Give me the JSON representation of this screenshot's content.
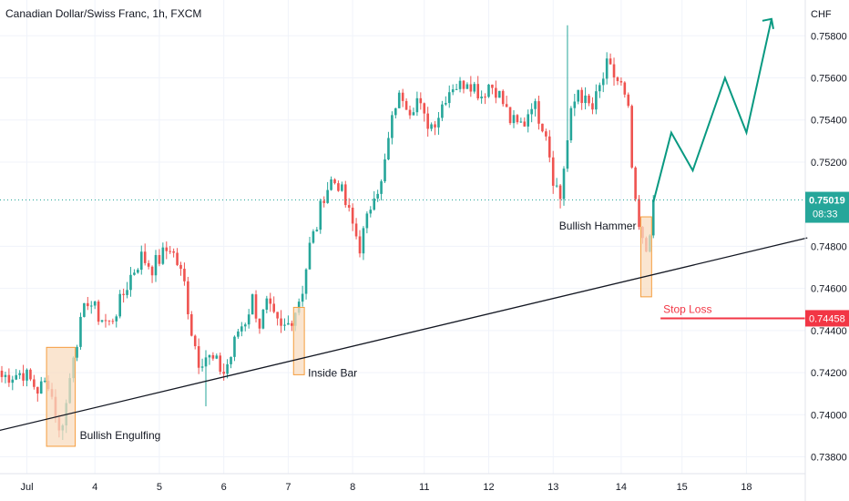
{
  "header": {
    "title": "Canadian Dollar/Swiss Franc, 1h, FXCM"
  },
  "colors": {
    "up": "#26a69a",
    "down": "#ef5350",
    "grid": "#f0f3fa",
    "trendline": "#131722",
    "projection": "#089981",
    "stop": "#f23645",
    "pattern_fill": "#f8dcc0",
    "pattern_stroke": "#f59d3d",
    "text": "#131722",
    "axis_text": "#131722"
  },
  "chart_data": {
    "type": "candlestick",
    "symbol": "Canadian Dollar/Swiss Franc",
    "timeframe": "1h",
    "source": "FXCM",
    "currency": "CHF",
    "x_axis_labels": [
      "Jul",
      "4",
      "5",
      "6",
      "7",
      "8",
      "11",
      "12",
      "13",
      "14",
      "15",
      "18"
    ],
    "y_axis": {
      "ticks": [
        "0.73800",
        "0.74000",
        "0.74200",
        "0.74400",
        "0.74600",
        "0.74800",
        "0.75200",
        "0.75400",
        "0.75600",
        "0.75800"
      ],
      "range": [
        0.7372,
        0.7597
      ]
    },
    "price_path": [
      [
        0,
        0.7418
      ],
      [
        6,
        0.742
      ],
      [
        10,
        0.7412
      ],
      [
        13,
        0.7416
      ],
      [
        15,
        0.7401
      ],
      [
        16,
        0.7391
      ],
      [
        18,
        0.7405
      ],
      [
        20,
        0.743
      ],
      [
        24,
        0.7455
      ],
      [
        27,
        0.7447
      ],
      [
        30,
        0.7443
      ],
      [
        33,
        0.7453
      ],
      [
        36,
        0.7466
      ],
      [
        39,
        0.7475
      ],
      [
        42,
        0.747
      ],
      [
        45,
        0.7476
      ],
      [
        47,
        0.748
      ],
      [
        49,
        0.7472
      ],
      [
        51,
        0.7462
      ],
      [
        53,
        0.744
      ],
      [
        55,
        0.7426
      ],
      [
        57,
        0.7428
      ],
      [
        60,
        0.7424
      ],
      [
        62,
        0.742
      ],
      [
        64,
        0.7428
      ],
      [
        66,
        0.744
      ],
      [
        68,
        0.7445
      ],
      [
        70,
        0.7455
      ],
      [
        72,
        0.7443
      ],
      [
        74,
        0.7452
      ],
      [
        76,
        0.7445
      ],
      [
        78,
        0.744
      ],
      [
        80,
        0.7443
      ],
      [
        82,
        0.745
      ],
      [
        84,
        0.746
      ],
      [
        86,
        0.748
      ],
      [
        88,
        0.749
      ],
      [
        90,
        0.7505
      ],
      [
        92,
        0.7511
      ],
      [
        94,
        0.751
      ],
      [
        96,
        0.75
      ],
      [
        98,
        0.749
      ],
      [
        100,
        0.748
      ],
      [
        102,
        0.7492
      ],
      [
        104,
        0.7507
      ],
      [
        106,
        0.7509
      ],
      [
        108,
        0.753
      ],
      [
        110,
        0.7548
      ],
      [
        112,
        0.7552
      ],
      [
        114,
        0.7546
      ],
      [
        116,
        0.755
      ],
      [
        118,
        0.754
      ],
      [
        120,
        0.7538
      ],
      [
        122,
        0.7543
      ],
      [
        124,
        0.7552
      ],
      [
        126,
        0.7557
      ],
      [
        128,
        0.7556
      ],
      [
        130,
        0.756
      ],
      [
        132,
        0.7556
      ],
      [
        134,
        0.7552
      ],
      [
        136,
        0.7557
      ],
      [
        138,
        0.7555
      ],
      [
        140,
        0.7548
      ],
      [
        142,
        0.754
      ],
      [
        144,
        0.7537
      ],
      [
        146,
        0.7539
      ],
      [
        148,
        0.7549
      ],
      [
        150,
        0.7542
      ],
      [
        152,
        0.7535
      ],
      [
        154,
        0.7513
      ],
      [
        156,
        0.7503
      ],
      [
        157,
        0.7518
      ],
      [
        159,
        0.7542
      ],
      [
        161,
        0.7555
      ],
      [
        163,
        0.7548
      ],
      [
        165,
        0.7545
      ],
      [
        167,
        0.7555
      ],
      [
        169,
        0.7565
      ],
      [
        171,
        0.7561
      ],
      [
        173,
        0.7556
      ],
      [
        175,
        0.7543
      ],
      [
        176,
        0.7517
      ],
      [
        177,
        0.7498
      ],
      [
        178,
        0.7488
      ],
      [
        179,
        0.7481
      ],
      [
        180,
        0.7478
      ],
      [
        181,
        0.7489
      ],
      [
        182,
        0.7501
      ]
    ],
    "wick_spikes": [
      {
        "bar": 158,
        "high": 0.7585
      },
      {
        "bar": 156,
        "low": 0.7498
      },
      {
        "bar": 57,
        "low": 0.7404
      },
      {
        "bar": 17,
        "low": 0.7388
      }
    ],
    "trendline": {
      "from": [
        "-2",
        0.7392
      ],
      "to": [
        "225",
        0.7484
      ]
    },
    "projection": [
      [
        182,
        0.7501
      ],
      [
        187,
        0.7534
      ],
      [
        193,
        0.7516
      ],
      [
        202,
        0.756
      ],
      [
        208,
        0.7534
      ],
      [
        215,
        0.7588
      ]
    ],
    "current_price": {
      "label": "0.75019",
      "time_left": "08:33",
      "value": 0.7502
    },
    "stop_loss": {
      "label": "Stop Loss",
      "price_label": "0.74458",
      "value": 0.74458,
      "from_bar": 184
    },
    "annotations": [
      {
        "label": "Bullish Engulfing",
        "box_bars": [
          13,
          20
        ],
        "box_prices": [
          0.7385,
          0.7432
        ]
      },
      {
        "label": "Inside Bar",
        "box_bars": [
          82,
          84
        ],
        "box_prices": [
          0.7419,
          0.7451
        ]
      },
      {
        "label": "Bullish Hammer",
        "box_bars": [
          179,
          181
        ],
        "box_prices": [
          0.7456,
          0.7494
        ]
      }
    ]
  }
}
